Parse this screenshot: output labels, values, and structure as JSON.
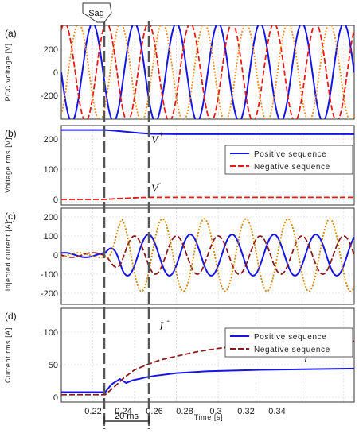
{
  "figure": {
    "sag_label": "Sag",
    "interval_label": "20 ms",
    "x_label": "Time [s]",
    "x_ticks": [
      "0.22",
      "0.24",
      "0.26",
      "0.28",
      "0.3",
      "0.32",
      "0.34"
    ],
    "colors": {
      "blue": "#1515e6",
      "red": "#e61a14",
      "orange": "#f08a24",
      "darkred": "#8b1a1a",
      "gold": "#cc8800",
      "marker": "#555555"
    }
  },
  "chart_data": [
    {
      "id": "a",
      "panel_label": "(a)",
      "type": "line",
      "ylabel": "PCC voltage [V]",
      "xlim": [
        0.205,
        0.345
      ],
      "ylim": [
        -300,
        300
      ],
      "yticks": [
        "200",
        "0",
        "-200"
      ],
      "series": [
        {
          "phase_deg": 90,
          "amplitude": 325,
          "frequency_hz": 50,
          "color": "blue",
          "style": "solid"
        },
        {
          "phase_deg": -30,
          "amplitude": 325,
          "frequency_hz": 50,
          "color": "red",
          "style": "dashed"
        },
        {
          "phase_deg": -150,
          "amplitude": 325,
          "frequency_hz": 50,
          "color": "orange",
          "style": "dotted"
        }
      ]
    },
    {
      "id": "b",
      "panel_label": "(b)",
      "type": "line",
      "ylabel": "Voltage rms [V]",
      "xlim": [
        0.205,
        0.345
      ],
      "ylim": [
        -20,
        240
      ],
      "yticks": [
        "200",
        "100",
        "0"
      ],
      "annotations": [
        {
          "text": "V",
          "sup": "+",
          "x": 0.248,
          "y": 185
        },
        {
          "text": "V",
          "sup": "-",
          "x": 0.248,
          "y": 25
        }
      ],
      "series": [
        {
          "name": "Positive sequence",
          "color": "blue",
          "style": "solid",
          "x": [
            0.205,
            0.226,
            0.23,
            0.236,
            0.242,
            0.248,
            0.26,
            0.345
          ],
          "y": [
            230,
            230,
            228,
            224,
            220,
            217,
            216,
            216
          ]
        },
        {
          "name": "Negative sequence",
          "color": "red",
          "style": "dashed",
          "x": [
            0.205,
            0.226,
            0.23,
            0.236,
            0.242,
            0.248,
            0.345
          ],
          "y": [
            0,
            0,
            2,
            4,
            6,
            7,
            7
          ]
        }
      ]
    },
    {
      "id": "c",
      "panel_label": "(c)",
      "type": "line",
      "ylabel": "Injected current [A]",
      "xlim": [
        0.205,
        0.345
      ],
      "ylim": [
        -230,
        230
      ],
      "yticks": [
        "200",
        "100",
        "0",
        "-100",
        "-200"
      ],
      "series": [
        {
          "color": "blue",
          "style": "solid",
          "phase_deg": -30,
          "amplitude": 108,
          "frequency_hz": 50
        },
        {
          "color": "darkred",
          "style": "dashed",
          "phase_deg": 90,
          "amplitude": 100,
          "frequency_hz": 50
        },
        {
          "color": "gold",
          "style": "dotted",
          "phase_deg": -150,
          "amplitude": 190,
          "frequency_hz": 50
        }
      ]
    },
    {
      "id": "d",
      "panel_label": "(d)",
      "type": "line",
      "ylabel": "Current rms [A]",
      "xlim": [
        0.205,
        0.345
      ],
      "ylim": [
        0,
        145
      ],
      "yticks": [
        "100",
        "50",
        "0"
      ],
      "annotations": [
        {
          "text": "I",
          "sup": "-",
          "x": 0.252,
          "y": 104
        },
        {
          "text": "I",
          "sup": "+",
          "x": 0.321,
          "y": 54
        }
      ],
      "series": [
        {
          "name": "Positive sequence",
          "color": "blue",
          "style": "solid",
          "x": [
            0.205,
            0.226,
            0.229,
            0.233,
            0.236,
            0.239,
            0.242,
            0.246,
            0.25,
            0.26,
            0.275,
            0.3,
            0.345
          ],
          "y": [
            8,
            8,
            20,
            28,
            22,
            26,
            28,
            31,
            33,
            37,
            40,
            42,
            44
          ]
        },
        {
          "name": "Negative sequence",
          "color": "darkred",
          "style": "dashed",
          "x": [
            0.205,
            0.226,
            0.23,
            0.235,
            0.24,
            0.246,
            0.252,
            0.26,
            0.27,
            0.28,
            0.29,
            0.3,
            0.31,
            0.32,
            0.345
          ],
          "y": [
            4,
            4,
            15,
            30,
            42,
            50,
            57,
            63,
            70,
            75,
            79,
            82,
            84,
            85,
            86
          ]
        }
      ]
    }
  ]
}
